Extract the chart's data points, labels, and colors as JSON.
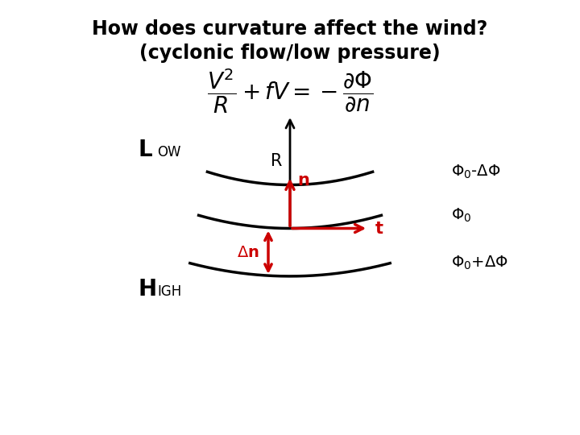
{
  "title_line1": "How does curvature affect the wind?",
  "title_line2": "(cyclonic flow/low pressure)",
  "bg_color": "#ffffff",
  "curve_color": "#000000",
  "arrow_color_black": "#000000",
  "arrow_color_red": "#cc0000",
  "label_Low": "L",
  "label_Low_sub": "OW",
  "label_High": "H",
  "label_High_sub": "IGH",
  "phi0_minus": "$\\Phi_0$-$\\Delta\\Phi$",
  "phi0": "$\\Phi_0$",
  "phi0_plus": "$\\Phi_0$+$\\Delta\\Phi$",
  "label_R": "R",
  "label_n": "n",
  "label_Dn": "$\\Delta$n",
  "label_t": "t",
  "formula": "$\\dfrac{V^2}{R} + fV = -\\dfrac{\\partial\\Phi}{\\partial n}$"
}
